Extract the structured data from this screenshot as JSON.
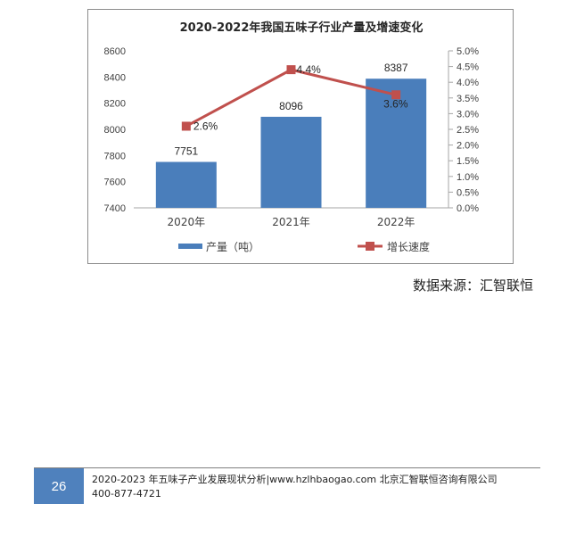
{
  "chart_data": {
    "type": "bar+line",
    "title": "2020-2022年我国五味子行业产量及增速变化",
    "categories": [
      "2020年",
      "2021年",
      "2022年"
    ],
    "series": [
      {
        "name": "产量（吨）",
        "type": "bar",
        "axis": "left",
        "color": "#4a7ebb",
        "values": [
          7751,
          8096,
          8387
        ],
        "labels": [
          "7751",
          "8096",
          "8387"
        ]
      },
      {
        "name": "增长速度",
        "type": "line",
        "axis": "right",
        "color": "#c0504d",
        "values": [
          2.6,
          4.4,
          3.6
        ],
        "labels": [
          "2.6%",
          "4.4%",
          "3.6%"
        ]
      }
    ],
    "y_left": {
      "min": 7400,
      "max": 8600,
      "ticks": [
        "7400",
        "7600",
        "7800",
        "8000",
        "8200",
        "8400",
        "8600"
      ]
    },
    "y_right": {
      "min": 0,
      "max": 5,
      "ticks": [
        "0.0%",
        "0.5%",
        "1.0%",
        "1.5%",
        "2.0%",
        "2.5%",
        "3.0%",
        "3.5%",
        "4.0%",
        "4.5%",
        "5.0%"
      ]
    },
    "legend": "bottom",
    "grid": false
  },
  "source": "数据来源：汇智联恒",
  "footer": {
    "page_number": "26",
    "line1": "2020-2023 年五味子产业发展现状分析|www.hzlhbaogao.com 北京汇智联恒咨询有限公司",
    "line2": "400-877-4721"
  }
}
